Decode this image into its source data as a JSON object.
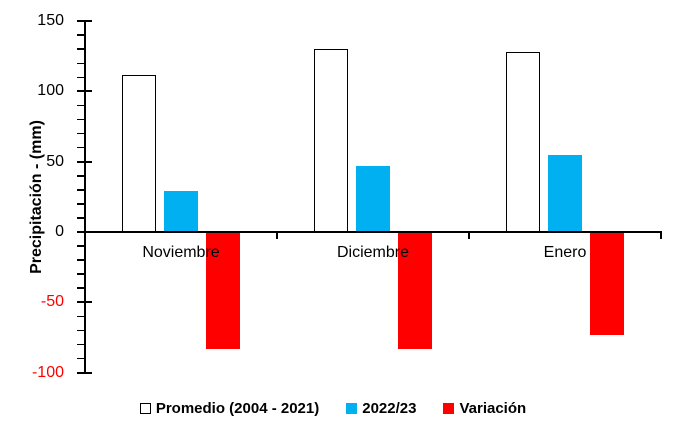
{
  "chart_data": {
    "type": "bar",
    "title": "",
    "ylabel": "Precipitación - (mm)",
    "xlabel": "",
    "categories": [
      "Noviembre",
      "Diciembre",
      "Enero"
    ],
    "series": [
      {
        "key": "promedio",
        "name": "Promedio (2004 - 2021)",
        "values": [
          112,
          130,
          128
        ],
        "fill": "#FFFFFF",
        "border": "#000000"
      },
      {
        "key": "2022-23",
        "name": "2022/23",
        "values": [
          29,
          47,
          55
        ],
        "fill": "#00B0F0",
        "border": ""
      },
      {
        "key": "variacion",
        "name": "Variación",
        "values": [
          -83,
          -83,
          -73
        ],
        "fill": "#FF0000",
        "border": ""
      }
    ],
    "ylim": [
      -100,
      150
    ],
    "y_major_ticks": [
      150,
      100,
      50,
      0,
      -50,
      -100
    ],
    "y_minor_unit": 10,
    "tick_label_color_positive": "#000000",
    "tick_label_color_negative": "#FF0000",
    "axis_color": "#000000",
    "grid": "off",
    "legend_position": "bottom"
  }
}
